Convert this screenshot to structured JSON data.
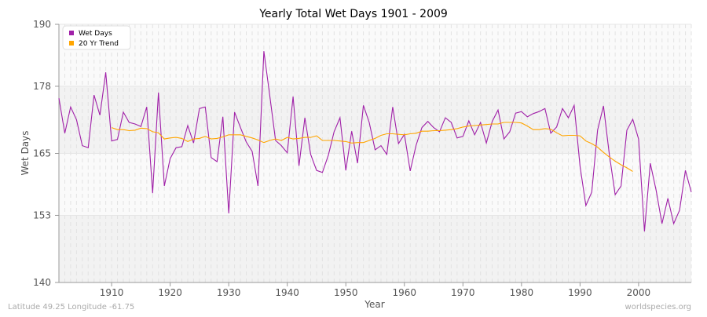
{
  "chart_data": {
    "type": "line",
    "title": "Yearly Total Wet Days 1901 - 2009",
    "xlabel": "Year",
    "ylabel": "Wet Days",
    "ylim": [
      140,
      190
    ],
    "xlim": [
      1901,
      2009
    ],
    "yticks": [
      140,
      153,
      165,
      178,
      190
    ],
    "xticks": [
      1910,
      1920,
      1930,
      1940,
      1950,
      1960,
      1970,
      1980,
      1990,
      2000
    ],
    "legend_position": "top-left",
    "series": [
      {
        "name": "Wet Days",
        "color": "#a020a8",
        "x_start": 1901,
        "values": [
          175.7,
          168.9,
          174,
          171.5,
          166.5,
          166.1,
          176.3,
          172.4,
          180.7,
          167.4,
          167.7,
          173,
          171,
          170.7,
          170.2,
          174,
          157.3,
          176.8,
          158.7,
          164,
          166.1,
          166.3,
          170.4,
          167,
          173.7,
          174,
          164.2,
          163.4,
          172.1,
          153.4,
          173,
          170,
          167.2,
          165.4,
          158.7,
          184.8,
          176.3,
          167.5,
          166.5,
          165.1,
          176,
          162.6,
          171.9,
          164.8,
          161.7,
          161.3,
          164.6,
          169.2,
          171.9,
          161.7,
          169.3,
          163.1,
          174.3,
          171,
          165.7,
          166.5,
          164.8,
          174,
          166.9,
          168.7,
          161.6,
          166.6,
          170,
          171.2,
          170,
          169.2,
          171.9,
          171,
          168,
          168.3,
          171.3,
          168.6,
          171,
          167,
          171.2,
          173.4,
          167.8,
          169.2,
          172.8,
          173.1,
          172.1,
          172.7,
          173.1,
          173.7,
          168.9,
          170.1,
          173.7,
          171.9,
          174.3,
          162.5,
          154.9,
          157.5,
          169.5,
          174.2,
          164.9,
          157,
          158.7,
          169.5,
          171.6,
          167.8,
          149.9,
          163.1,
          157.8,
          151.4,
          156.3,
          151.4,
          154,
          161.7,
          157.5
        ]
      },
      {
        "name": "20 Yr Trend",
        "color": "#ffa500",
        "x_start": 1910,
        "values": [
          170,
          169.6,
          169.6,
          169.4,
          169.5,
          169.9,
          169.8,
          169.2,
          169,
          167.8,
          168,
          168.1,
          167.9,
          167.3,
          167.8,
          167.9,
          168.3,
          167.8,
          167.9,
          168.2,
          168.6,
          168.6,
          168.6,
          168.3,
          168,
          167.6,
          167.1,
          167.5,
          167.8,
          167.5,
          168.1,
          167.8,
          167.9,
          168.1,
          168.1,
          168.4,
          167.5,
          167.5,
          167.5,
          167.4,
          167.3,
          167,
          167.1,
          167.1,
          167.5,
          167.9,
          168.5,
          168.8,
          168.8,
          168.7,
          168.6,
          168.8,
          168.9,
          169.3,
          169.3,
          169.4,
          169.4,
          169.5,
          169.6,
          169.8,
          170.1,
          170.3,
          170.4,
          170.5,
          170.6,
          170.7,
          170.7,
          171,
          171,
          171,
          170.9,
          170.3,
          169.6,
          169.6,
          169.8,
          169.7,
          169,
          168.4,
          168.5,
          168.5,
          168.4,
          167.4,
          166.9,
          166.2,
          165.2,
          164.3,
          163.5,
          162.8,
          162.2,
          161.5
        ]
      }
    ]
  },
  "footer": {
    "left": "Latitude 49.25 Longitude -61.75",
    "right": "worldspecies.org"
  }
}
